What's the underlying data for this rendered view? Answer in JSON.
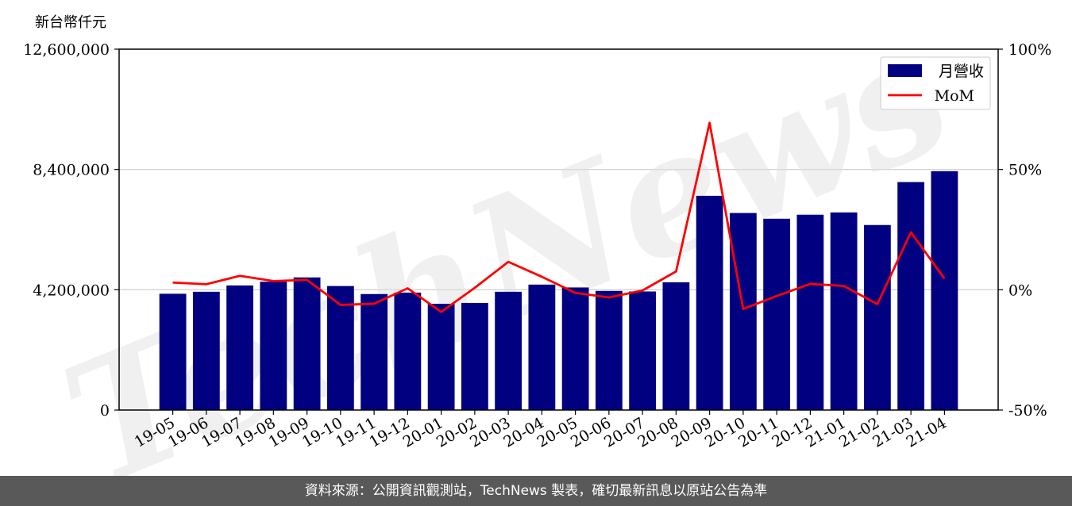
{
  "chart_data": {
    "type": "bar",
    "ylabel": "新台幣仟元",
    "categories": [
      "19-05",
      "19-06",
      "19-07",
      "19-08",
      "19-09",
      "19-10",
      "19-11",
      "19-12",
      "20-01",
      "20-02",
      "20-03",
      "20-04",
      "20-05",
      "20-06",
      "20-07",
      "20-08",
      "20-09",
      "20-10",
      "20-11",
      "20-12",
      "21-01",
      "21-02",
      "21-03",
      "21-04"
    ],
    "series": [
      {
        "name": "月營收",
        "axis": "left",
        "type": "bar",
        "color": "#000080",
        "values": [
          4060000,
          4130000,
          4350000,
          4480000,
          4630000,
          4330000,
          4050000,
          4100000,
          3710000,
          3740000,
          4130000,
          4380000,
          4280000,
          4160000,
          4140000,
          4460000,
          7480000,
          6880000,
          6680000,
          6820000,
          6900000,
          6460000,
          7960000,
          8340000
        ]
      },
      {
        "name": "MoM",
        "axis": "right",
        "type": "line",
        "color": "#ff0000",
        "values": [
          3.0,
          2.3,
          5.8,
          3.6,
          4.1,
          -6.3,
          -5.8,
          0.6,
          -9.2,
          0.8,
          11.6,
          5.4,
          -1.3,
          -3.2,
          -0.3,
          7.6,
          69.4,
          -8.0,
          -2.6,
          2.4,
          1.6,
          -6.0,
          23.9,
          4.6
        ]
      }
    ],
    "y_left": {
      "range": [
        0,
        12600000
      ],
      "ticks": [
        "0",
        "4,200,000",
        "8,400,000",
        "12,600,000"
      ],
      "tick_values": [
        0,
        4200000,
        8400000,
        12600000
      ]
    },
    "y_right": {
      "range": [
        -50,
        100
      ],
      "ticks": [
        "-50%",
        "0%",
        "50%",
        "100%"
      ],
      "tick_values": [
        -50,
        0,
        50,
        100
      ]
    },
    "grid": "horizontal",
    "legend_position": "top-right"
  },
  "watermark": "TechNews",
  "footer": {
    "text": "資料來源：公開資訊觀測站，TechNews 製表，確切最新訊息以原站公告為準"
  }
}
